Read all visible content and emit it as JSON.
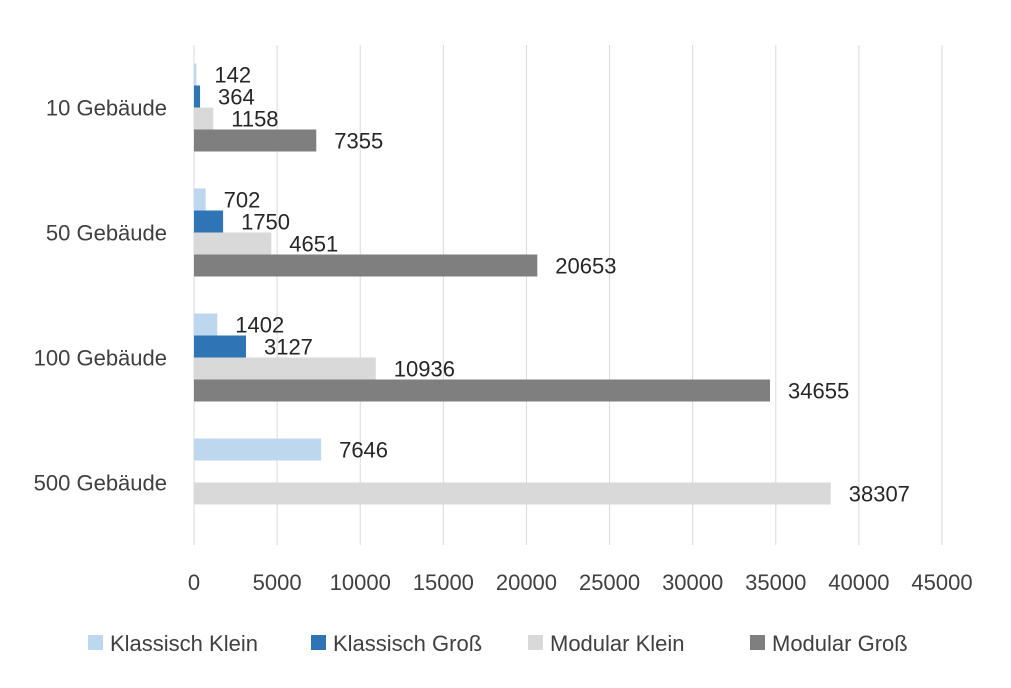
{
  "chart_data": {
    "type": "bar",
    "orientation": "horizontal",
    "categories": [
      "10 Gebäude",
      "50 Gebäude",
      "100 Gebäude",
      "500 Gebäude"
    ],
    "series": [
      {
        "name": "Klassisch Klein",
        "color": "#BDD7EE",
        "values": [
          142,
          702,
          1402,
          7646
        ]
      },
      {
        "name": "Klassisch Groß",
        "color": "#2E75B6",
        "values": [
          364,
          1750,
          3127,
          null
        ]
      },
      {
        "name": "Modular Klein",
        "color": "#D9D9D9",
        "values": [
          1158,
          4651,
          10936,
          38307
        ]
      },
      {
        "name": "Modular Groß",
        "color": "#7F7F7F",
        "values": [
          7355,
          20653,
          34655,
          null
        ]
      }
    ],
    "xlim": [
      0,
      45000
    ],
    "xticks": [
      "0",
      "5000",
      "10000",
      "15000",
      "20000",
      "25000",
      "30000",
      "35000",
      "40000",
      "45000"
    ],
    "grid": true,
    "legend": "bottom"
  }
}
